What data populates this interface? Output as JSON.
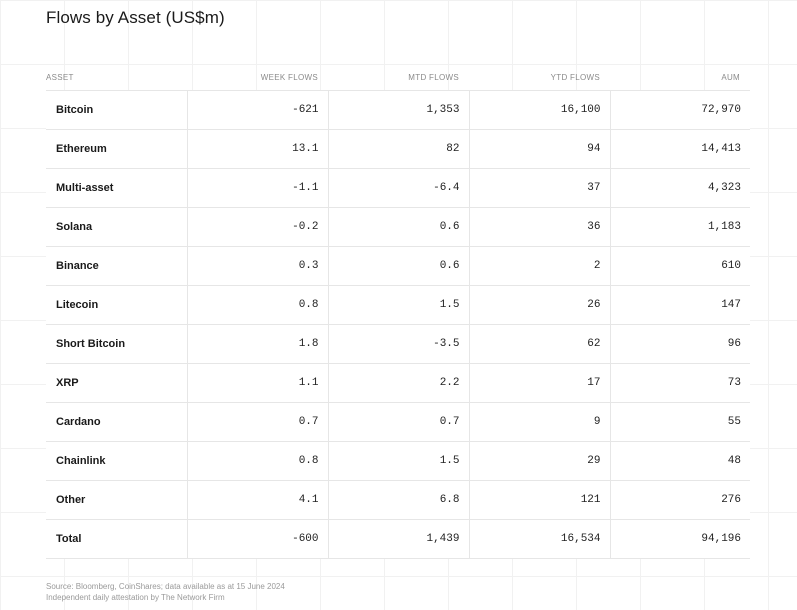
{
  "chart_data": {
    "type": "table",
    "title": "Flows by Asset (US$m)",
    "columns": [
      "ASSET",
      "WEEK FLOWS",
      "MTD FLOWS",
      "YTD FLOWS",
      "AUM"
    ],
    "rows": [
      {
        "asset": "Bitcoin",
        "week": "-621",
        "mtd": "1,353",
        "ytd": "16,100",
        "aum": "72,970"
      },
      {
        "asset": "Ethereum",
        "week": "13.1",
        "mtd": "82",
        "ytd": "94",
        "aum": "14,413"
      },
      {
        "asset": "Multi-asset",
        "week": "-1.1",
        "mtd": "-6.4",
        "ytd": "37",
        "aum": "4,323"
      },
      {
        "asset": "Solana",
        "week": "-0.2",
        "mtd": "0.6",
        "ytd": "36",
        "aum": "1,183"
      },
      {
        "asset": "Binance",
        "week": "0.3",
        "mtd": "0.6",
        "ytd": "2",
        "aum": "610"
      },
      {
        "asset": "Litecoin",
        "week": "0.8",
        "mtd": "1.5",
        "ytd": "26",
        "aum": "147"
      },
      {
        "asset": "Short Bitcoin",
        "week": "1.8",
        "mtd": "-3.5",
        "ytd": "62",
        "aum": "96"
      },
      {
        "asset": "XRP",
        "week": "1.1",
        "mtd": "2.2",
        "ytd": "17",
        "aum": "73"
      },
      {
        "asset": "Cardano",
        "week": "0.7",
        "mtd": "0.7",
        "ytd": "9",
        "aum": "55"
      },
      {
        "asset": "Chainlink",
        "week": "0.8",
        "mtd": "1.5",
        "ytd": "29",
        "aum": "48"
      },
      {
        "asset": "Other",
        "week": "4.1",
        "mtd": "6.8",
        "ytd": "121",
        "aum": "276"
      },
      {
        "asset": "Total",
        "week": "-600",
        "mtd": "1,439",
        "ytd": "16,534",
        "aum": "94,196"
      }
    ],
    "source_lines": [
      "Source: Bloomberg, CoinShares; data available as at 15 June 2024",
      "Independent daily attestation by The Network Firm"
    ]
  }
}
